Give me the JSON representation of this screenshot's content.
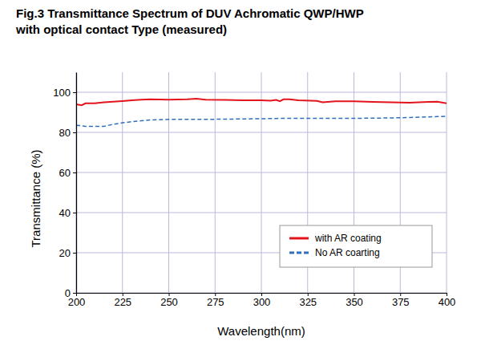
{
  "chart_data": {
    "type": "line",
    "title": [
      "Fig.3   Transmittance Spectrum of  DUV Achromatic  QWP/HWP",
      "with optical contact  Type (measured)"
    ],
    "x_label": "Wavelength(nm)",
    "y_label": "Transmittance (%)",
    "x": [
      200,
      203,
      205,
      210,
      215,
      220,
      225,
      230,
      235,
      240,
      250,
      260,
      265,
      270,
      280,
      290,
      300,
      305,
      308,
      310,
      312,
      315,
      320,
      330,
      333,
      340,
      350,
      360,
      370,
      380,
      390,
      395,
      400
    ],
    "series": [
      {
        "name": "with AR coating",
        "color": "#e3141c",
        "line_style": "solid",
        "values": [
          94,
          93.5,
          94.5,
          94.5,
          95,
          95.3,
          95.6,
          96,
          96.3,
          96.5,
          96.3,
          96.5,
          96.8,
          96.3,
          96.2,
          96,
          96,
          95.8,
          96.2,
          95.5,
          96.5,
          96.5,
          96,
          95.7,
          95,
          95.5,
          95.5,
          95.2,
          95,
          94.8,
          95.2,
          95.3,
          94.5
        ]
      },
      {
        "name": "No AR coarting",
        "color": "#2f6fbf",
        "line_style": "dashed",
        "values": [
          83.5,
          83.3,
          83,
          83,
          83,
          84,
          84.8,
          85.3,
          85.8,
          86.2,
          86.5,
          86.5,
          86.5,
          86.5,
          86.6,
          86.7,
          86.8,
          86.9,
          86.9,
          87,
          87,
          87,
          87,
          87,
          87,
          87,
          87,
          87.1,
          87.2,
          87.4,
          87.7,
          87.9,
          88
        ]
      }
    ],
    "xlim": [
      200,
      400
    ],
    "xticks": [
      200,
      225,
      250,
      275,
      300,
      325,
      350,
      375,
      400
    ],
    "ylim": [
      0,
      110
    ],
    "yticks": [
      0,
      20,
      40,
      60,
      80,
      100
    ],
    "grid": true,
    "legend": "lower right"
  }
}
